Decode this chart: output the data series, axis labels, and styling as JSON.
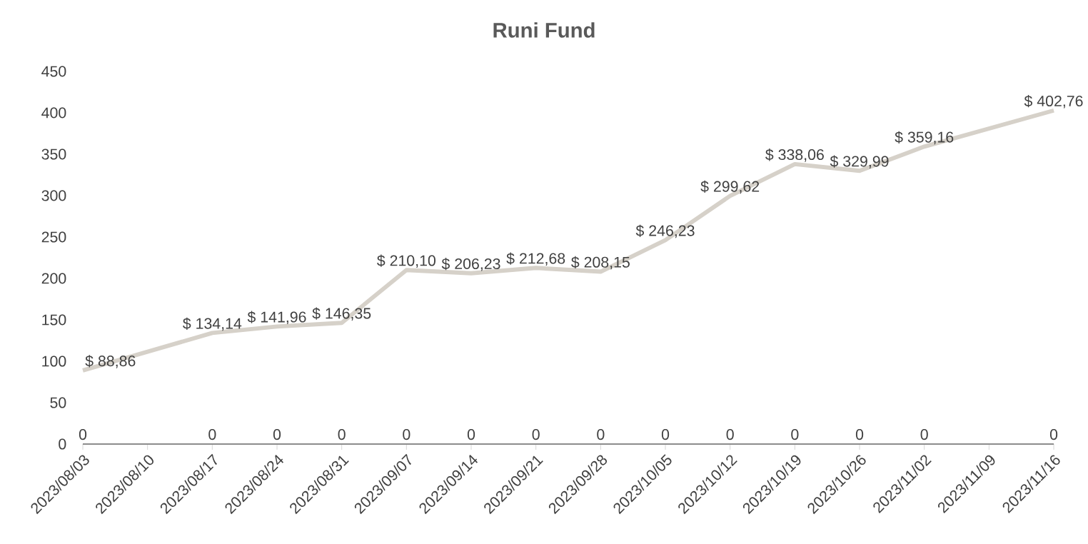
{
  "chart_data": {
    "type": "line",
    "title": "Runi Fund",
    "x": [
      "2023-08-03",
      "2023-08-17",
      "2023-08-24",
      "2023-08-31",
      "2023-09-07",
      "2023-09-14",
      "2023-09-21",
      "2023-09-28",
      "2023-10-05",
      "2023-10-12",
      "2023-10-19",
      "2023-10-26",
      "2023-11-02",
      "2023-11-16"
    ],
    "series": [
      {
        "color": "#d6d1c9",
        "values": [
          88.86,
          134.14,
          141.96,
          146.35,
          210.1,
          206.23,
          212.68,
          208.15,
          246.23,
          299.62,
          338.06,
          329.99,
          359.16,
          402.76
        ],
        "value_labels": [
          "$ 88,86",
          "$ 134,14",
          "$ 141,96",
          "$ 146,35",
          "$ 210,10",
          "$ 206,23",
          "$ 212,68",
          "$ 208,15",
          "$ 246,23",
          "$ 299,62",
          "$ 338,06",
          "$ 329,99",
          "$ 359,16",
          "$ 402,76"
        ]
      },
      {
        "color": "#8c8c8c",
        "values": [
          0,
          0,
          0,
          0,
          0,
          0,
          0,
          0,
          0,
          0,
          0,
          0,
          0,
          0
        ],
        "data_labels": true
      }
    ],
    "xlim": [
      "2023-08-03",
      "2023-11-16"
    ],
    "xticks": [
      {
        "value": "2023-08-03",
        "label": "2023/08/03"
      },
      {
        "value": "2023-08-10",
        "label": "2023/08/10"
      },
      {
        "value": "2023-08-17",
        "label": "2023/08/17"
      },
      {
        "value": "2023-08-24",
        "label": "2023/08/24"
      },
      {
        "value": "2023-08-31",
        "label": "2023/08/31"
      },
      {
        "value": "2023-09-07",
        "label": "2023/09/07"
      },
      {
        "value": "2023-09-14",
        "label": "2023/09/14"
      },
      {
        "value": "2023-09-21",
        "label": "2023/09/21"
      },
      {
        "value": "2023-09-28",
        "label": "2023/09/28"
      },
      {
        "value": "2023-10-05",
        "label": "2023/10/05"
      },
      {
        "value": "2023-10-12",
        "label": "2023/10/12"
      },
      {
        "value": "2023-10-19",
        "label": "2023/10/19"
      },
      {
        "value": "2023-10-26",
        "label": "2023/10/26"
      },
      {
        "value": "2023-11-02",
        "label": "2023/11/02"
      },
      {
        "value": "2023-11-09",
        "label": "2023/11/09"
      },
      {
        "value": "2023-11-16",
        "label": "2023/11/16"
      }
    ],
    "ylim": [
      0,
      450
    ],
    "yticks": [
      0,
      50,
      100,
      150,
      200,
      250,
      300,
      350,
      400,
      450
    ],
    "line_style": "solid"
  }
}
